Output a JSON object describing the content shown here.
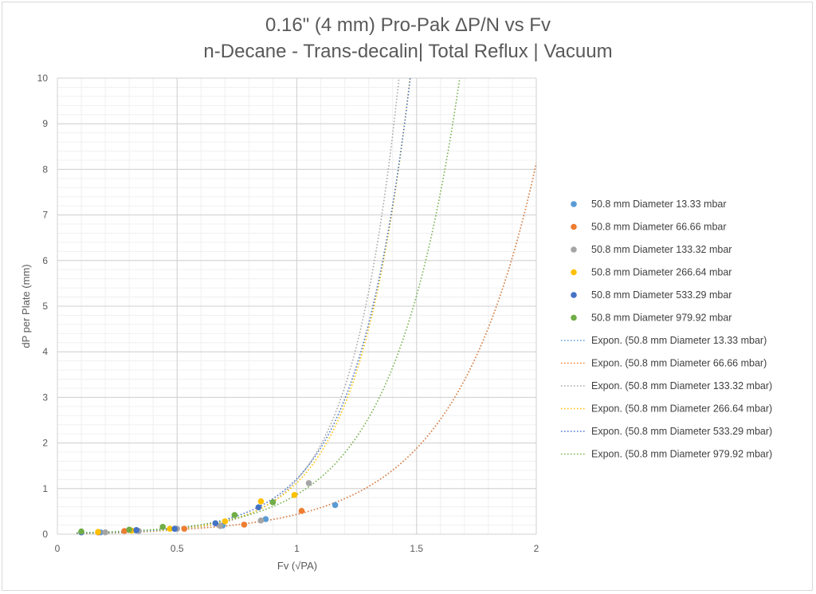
{
  "chart_data": {
    "type": "scatter",
    "title": "0.16\" (4 mm) Pro-Pak ΔP/N vs Fv",
    "subtitle": "n-Decane - Trans-decalin| Total Reflux | Vacuum",
    "xlabel": "Fv (√PA)",
    "ylabel": "dP per Plate (mm)",
    "xlim": [
      0,
      2
    ],
    "ylim": [
      0,
      10
    ],
    "x_ticks": [
      "0",
      "0.5",
      "1",
      "1.5",
      "2"
    ],
    "y_ticks": [
      "0",
      "1",
      "2",
      "3",
      "4",
      "5",
      "6",
      "7",
      "8",
      "9",
      "10"
    ],
    "grid": "on",
    "legend_position": "right",
    "series": [
      {
        "name": "50.8 mm Diameter 13.33 mbar",
        "color": "#5b9bd5",
        "points": [
          [
            0.18,
            0.04
          ],
          [
            0.33,
            0.08
          ],
          [
            0.49,
            0.12
          ],
          [
            0.69,
            0.19
          ],
          [
            0.87,
            0.33
          ],
          [
            1.16,
            0.64
          ]
        ],
        "trend": {
          "name": "Expon. (50.8 mm Diameter 13.33 mbar)",
          "a": 0.0232,
          "b": 2.93
        }
      },
      {
        "name": "50.8 mm Diameter 66.66 mbar",
        "color": "#ed7d31",
        "points": [
          [
            0.17,
            0.04
          ],
          [
            0.28,
            0.07
          ],
          [
            0.53,
            0.12
          ],
          [
            0.78,
            0.21
          ],
          [
            1.02,
            0.51
          ]
        ],
        "trend": {
          "name": "Expon. (50.8 mm Diameter 66.66 mbar)",
          "a": 0.0232,
          "b": 2.93
        }
      },
      {
        "name": "50.8 mm Diameter 133.32 mbar",
        "color": "#a5a5a5",
        "points": [
          [
            0.2,
            0.04
          ],
          [
            0.34,
            0.07
          ],
          [
            0.5,
            0.12
          ],
          [
            0.68,
            0.18
          ],
          [
            0.85,
            0.3
          ],
          [
            1.05,
            1.12
          ]
        ],
        "trend": {
          "name": "Expon. (50.8 mm Diameter 133.32 mbar)",
          "a": 0.0081,
          "b": 4.99
        }
      },
      {
        "name": "50.8 mm Diameter 266.64 mbar",
        "color": "#ffc000",
        "points": [
          [
            0.17,
            0.05
          ],
          [
            0.31,
            0.08
          ],
          [
            0.47,
            0.12
          ],
          [
            0.7,
            0.28
          ],
          [
            0.85,
            0.72
          ],
          [
            0.99,
            0.86
          ]
        ],
        "trend": {
          "name": "Expon. (50.8 mm Diameter 266.64 mbar)",
          "a": 0.0111,
          "b": 4.62
        }
      },
      {
        "name": "50.8 mm Diameter 533.29 mbar",
        "color": "#4472c4",
        "points": [
          [
            0.1,
            0.04
          ],
          [
            0.33,
            0.09
          ],
          [
            0.49,
            0.12
          ],
          [
            0.66,
            0.24
          ],
          [
            0.84,
            0.59
          ]
        ],
        "trend": {
          "name": "Expon. (50.8 mm Diameter 533.29 mbar)",
          "a": 0.0142,
          "b": 4.45
        }
      },
      {
        "name": "50.8 mm Diameter 979.92 mbar",
        "color": "#70ad47",
        "points": [
          [
            0.1,
            0.06
          ],
          [
            0.3,
            0.1
          ],
          [
            0.44,
            0.16
          ],
          [
            0.74,
            0.42
          ],
          [
            0.9,
            0.7
          ]
        ],
        "trend": {
          "name": "Expon. (50.8 mm Diameter 979.92 mbar)",
          "a": 0.024,
          "b": 3.59
        }
      }
    ]
  }
}
